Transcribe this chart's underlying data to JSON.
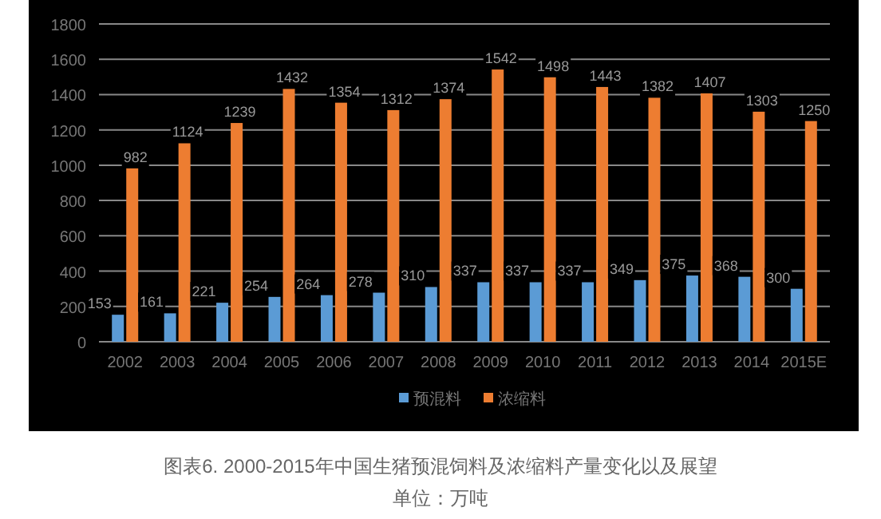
{
  "chart_data": {
    "type": "bar",
    "categories": [
      "2002",
      "2003",
      "2004",
      "2005",
      "2006",
      "2007",
      "2008",
      "2009",
      "2010",
      "2011",
      "2012",
      "2013",
      "2014",
      "2015E"
    ],
    "series": [
      {
        "name": "预混料",
        "color": "#5b9bd5",
        "values": [
          153,
          161,
          221,
          254,
          264,
          278,
          310,
          337,
          337,
          337,
          349,
          375,
          368,
          300
        ]
      },
      {
        "name": "浓缩料",
        "color": "#ed7d31",
        "values": [
          982,
          1124,
          1239,
          1432,
          1354,
          1312,
          1374,
          1542,
          1498,
          1443,
          1382,
          1407,
          1303,
          1250
        ]
      }
    ],
    "ylim": [
      0,
      1800
    ],
    "yticks": [
      0,
      200,
      400,
      600,
      800,
      1000,
      1200,
      1400,
      1600,
      1800
    ],
    "grid": "y",
    "legend": "bottom",
    "data_labels": true,
    "annotations": [
      "图表6. 2000-2015年中国生猪预混饲料及浓缩料产量变化以及展望",
      "单位：万吨"
    ]
  }
}
